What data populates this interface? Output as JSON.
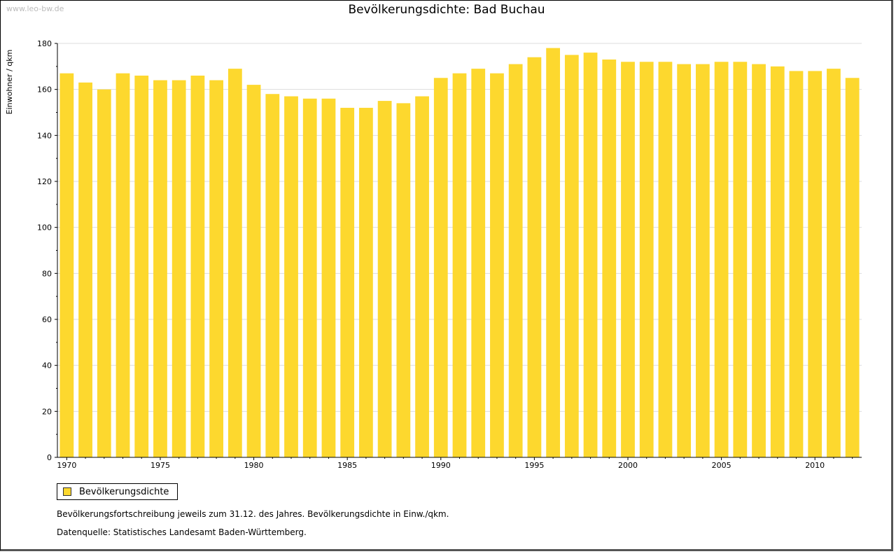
{
  "watermark": "www.leo-bw.de",
  "chart_data": {
    "type": "bar",
    "title": "Bevölkerungsdichte: Bad Buchau",
    "xlabel": "",
    "ylabel": "Einwohner / qkm",
    "ylim": [
      0,
      180
    ],
    "yticks": [
      0,
      20,
      40,
      60,
      80,
      100,
      120,
      140,
      160,
      180
    ],
    "xtick_labels": [
      "1970",
      "1975",
      "1980",
      "1985",
      "1990",
      "1995",
      "2000",
      "2005",
      "2010"
    ],
    "grid": true,
    "legend_position": "bottom-left",
    "categories": [
      1970,
      1971,
      1972,
      1973,
      1974,
      1975,
      1976,
      1977,
      1978,
      1979,
      1980,
      1981,
      1982,
      1983,
      1984,
      1985,
      1986,
      1987,
      1988,
      1989,
      1990,
      1991,
      1992,
      1993,
      1994,
      1995,
      1996,
      1997,
      1998,
      1999,
      2000,
      2001,
      2002,
      2003,
      2004,
      2005,
      2006,
      2007,
      2008,
      2009,
      2010,
      2011,
      2012
    ],
    "series": [
      {
        "name": "Bevölkerungsdichte",
        "color": "#fdd82e",
        "values": [
          167,
          163,
          160,
          167,
          166,
          164,
          164,
          166,
          164,
          169,
          162,
          158,
          157,
          156,
          156,
          152,
          152,
          155,
          154,
          157,
          165,
          167,
          169,
          167,
          171,
          174,
          178,
          175,
          176,
          173,
          172,
          172,
          172,
          171,
          171,
          172,
          172,
          171,
          170,
          168,
          168,
          169,
          165
        ]
      }
    ]
  },
  "notes": {
    "line1": "Bevölkerungsfortschreibung jeweils zum 31.12. des Jahres. Bevölkerungsdichte in Einw./qkm.",
    "line2": "Datenquelle: Statistisches Landesamt Baden-Württemberg."
  }
}
